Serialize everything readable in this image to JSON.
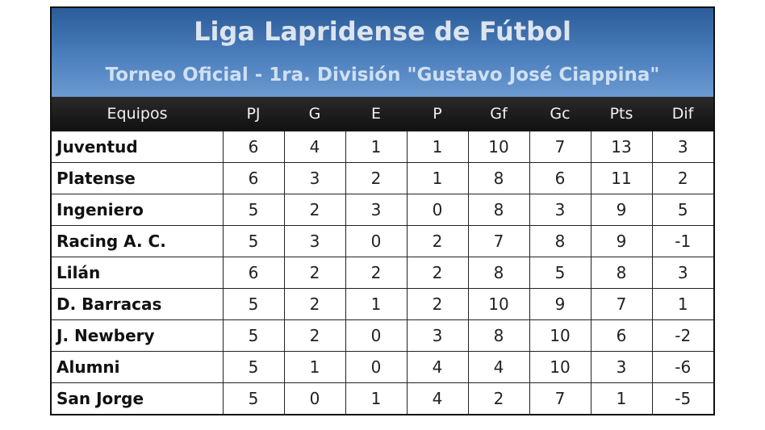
{
  "header": {
    "title": "Liga Lapridense de Fútbol",
    "subtitle": "Torneo Oficial - 1ra. División \"Gustavo José Ciappina\""
  },
  "table": {
    "columns": [
      "Equipos",
      "PJ",
      "G",
      "E",
      "P",
      "Gf",
      "Gc",
      "Pts",
      "Dif"
    ],
    "rows": [
      [
        "Juventud",
        6,
        4,
        1,
        1,
        10,
        7,
        13,
        3
      ],
      [
        "Platense",
        6,
        3,
        2,
        1,
        8,
        6,
        11,
        2
      ],
      [
        "Ingeniero",
        5,
        2,
        3,
        0,
        8,
        3,
        9,
        5
      ],
      [
        "Racing A. C.",
        5,
        3,
        0,
        2,
        7,
        8,
        9,
        -1
      ],
      [
        "Lilán",
        6,
        2,
        2,
        2,
        8,
        5,
        8,
        3
      ],
      [
        "D. Barracas",
        5,
        2,
        1,
        2,
        10,
        9,
        7,
        1
      ],
      [
        "J. Newbery",
        5,
        2,
        0,
        3,
        8,
        10,
        6,
        -2
      ],
      [
        "Alumni",
        5,
        1,
        0,
        4,
        4,
        10,
        3,
        -6
      ],
      [
        "San Jorge",
        5,
        0,
        1,
        4,
        2,
        7,
        1,
        -5
      ]
    ]
  }
}
